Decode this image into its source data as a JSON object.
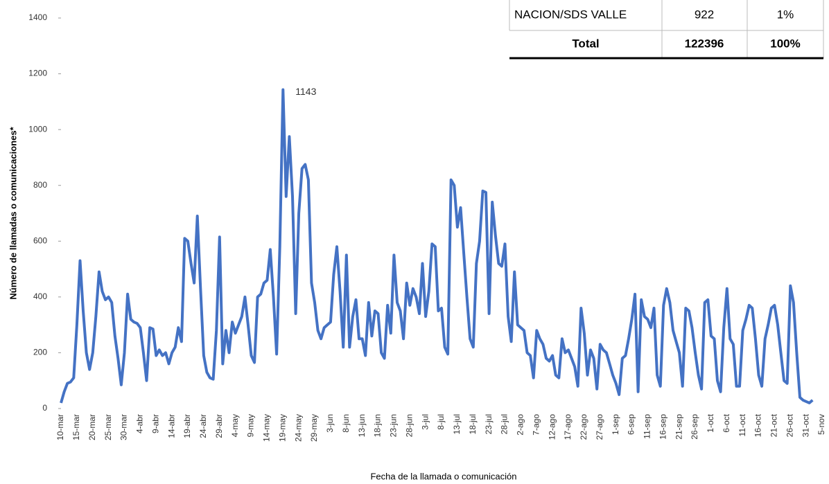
{
  "chart_data": {
    "type": "line",
    "ylabel": "Número de llamadas  o comunicaciones*",
    "xlabel": "Fecha de la llamada  o comunicación",
    "annotation": "1143",
    "color": "#4472c4",
    "ylim": [
      0,
      1400
    ],
    "yticks": [
      0,
      200,
      400,
      600,
      800,
      1000,
      1200,
      1400
    ],
    "grid": false,
    "categories": [
      "10-mar",
      null,
      null,
      null,
      null,
      "15-mar",
      null,
      null,
      null,
      null,
      "20-mar",
      null,
      null,
      null,
      null,
      "25-mar",
      null,
      null,
      null,
      null,
      "30-mar",
      null,
      null,
      null,
      null,
      "4-abr",
      null,
      null,
      null,
      null,
      "9-abr",
      null,
      null,
      null,
      null,
      "14-abr",
      null,
      null,
      null,
      null,
      "19-abr",
      null,
      null,
      null,
      null,
      "24-abr",
      null,
      null,
      null,
      null,
      "29-abr",
      null,
      null,
      null,
      null,
      "4-may",
      null,
      null,
      null,
      null,
      "9-may",
      null,
      null,
      null,
      null,
      "14-may",
      null,
      null,
      null,
      null,
      "19-may",
      null,
      null,
      null,
      null,
      "24-may",
      null,
      null,
      null,
      null,
      "29-may",
      null,
      null,
      null,
      null,
      "3-jun",
      null,
      null,
      null,
      null,
      "8-jun",
      null,
      null,
      null,
      null,
      "13-jun",
      null,
      null,
      null,
      null,
      "18-jun",
      null,
      null,
      null,
      null,
      "23-jun",
      null,
      null,
      null,
      null,
      "28-jun",
      null,
      null,
      null,
      null,
      "3-jul",
      null,
      null,
      null,
      null,
      "8-jul",
      null,
      null,
      null,
      null,
      "13-jul",
      null,
      null,
      null,
      null,
      "18-jul",
      null,
      null,
      null,
      null,
      "23-jul",
      null,
      null,
      null,
      null,
      "28-jul",
      null,
      null,
      null,
      null,
      "2-ago",
      null,
      null,
      null,
      null,
      "7-ago",
      null,
      null,
      null,
      null,
      "12-ago",
      null,
      null,
      null,
      null,
      "17-ago",
      null,
      null,
      null,
      null,
      "22-ago",
      null,
      null,
      null,
      null,
      "27-ago",
      null,
      null,
      null,
      null,
      "1-sep",
      null,
      null,
      null,
      null,
      "6-sep",
      null,
      null,
      null,
      null,
      "11-sep",
      null,
      null,
      null,
      null,
      "16-sep",
      null,
      null,
      null,
      null,
      "21-sep",
      null,
      null,
      null,
      null,
      "26-sep",
      null,
      null,
      null,
      null,
      "1-oct",
      null,
      null,
      null,
      null,
      "6-oct",
      null,
      null,
      null,
      null,
      "11-oct",
      null,
      null,
      null,
      null,
      "16-oct",
      null,
      null,
      null,
      null,
      "21-oct",
      null,
      null,
      null,
      null,
      "26-oct",
      null,
      null,
      null,
      null,
      "31-oct",
      null,
      null,
      null,
      null,
      "5-nov"
    ],
    "values": [
      20,
      60,
      90,
      95,
      110,
      300,
      530,
      350,
      200,
      140,
      200,
      330,
      490,
      420,
      390,
      400,
      380,
      260,
      180,
      85,
      200,
      410,
      320,
      310,
      305,
      290,
      200,
      100,
      290,
      285,
      190,
      210,
      190,
      200,
      160,
      200,
      220,
      290,
      240,
      610,
      600,
      520,
      450,
      690,
      430,
      190,
      130,
      110,
      105,
      280,
      615,
      160,
      280,
      200,
      310,
      270,
      300,
      330,
      400,
      300,
      190,
      165,
      400,
      410,
      450,
      460,
      570,
      400,
      195,
      580,
      1143,
      760,
      975,
      760,
      340,
      700,
      860,
      875,
      820,
      450,
      380,
      280,
      250,
      290,
      300,
      310,
      480,
      580,
      420,
      220,
      550,
      220,
      330,
      390,
      250,
      250,
      190,
      380,
      260,
      350,
      340,
      200,
      180,
      370,
      270,
      550,
      380,
      350,
      250,
      450,
      370,
      430,
      400,
      340,
      520,
      330,
      420,
      590,
      580,
      350,
      360,
      220,
      195,
      820,
      800,
      650,
      720,
      560,
      400,
      250,
      220,
      520,
      600,
      780,
      775,
      340,
      740,
      620,
      520,
      510,
      590,
      330,
      240,
      490,
      300,
      290,
      280,
      200,
      190,
      110,
      280,
      250,
      230,
      180,
      170,
      190,
      120,
      110,
      250,
      200,
      210,
      180,
      150,
      80,
      360,
      270,
      120,
      210,
      180,
      70,
      230,
      210,
      200,
      160,
      120,
      90,
      50,
      180,
      190,
      250,
      320,
      410,
      60,
      390,
      330,
      320,
      290,
      360,
      120,
      80,
      370,
      430,
      380,
      280,
      240,
      200,
      80,
      360,
      350,
      290,
      200,
      120,
      70,
      380,
      390,
      260,
      250,
      100,
      60,
      290,
      430,
      250,
      230,
      80,
      80,
      280,
      320,
      370,
      360,
      250,
      120,
      80,
      250,
      300,
      360,
      370,
      300,
      200,
      100,
      90,
      440,
      380,
      200,
      40,
      30,
      25,
      20,
      30,
      null,
      null,
      null
    ]
  },
  "table": {
    "rows": [
      [
        "NACION/SDS VALLE",
        "922",
        "1%"
      ],
      [
        "Total",
        "122396",
        "100%"
      ]
    ]
  }
}
